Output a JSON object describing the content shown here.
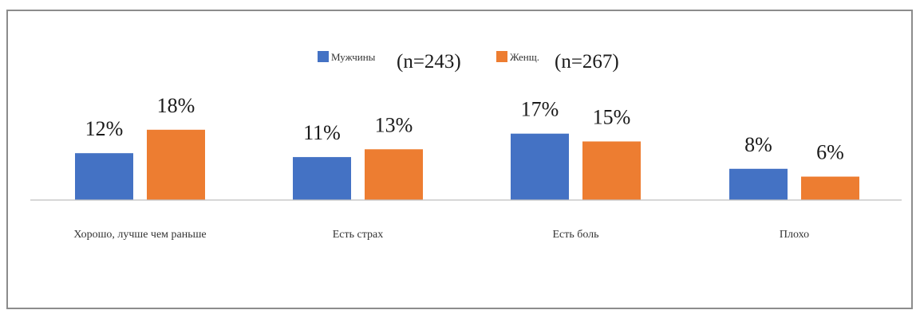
{
  "chart_data": {
    "type": "bar",
    "categories": [
      "Хорошо, лучше чем раньше",
      "Есть страх",
      "Есть боль",
      "Плохо"
    ],
    "series": [
      {
        "name": "Мужчины",
        "n_label": "(n=243)",
        "color": "#4472C4",
        "values": [
          12,
          11,
          17,
          8
        ],
        "labels": [
          "12%",
          "11%",
          "17%",
          "8%"
        ]
      },
      {
        "name": "Женщ.",
        "n_label": "(n=267)",
        "color": "#ED7D31",
        "values": [
          18,
          13,
          15,
          6
        ],
        "labels": [
          "18%",
          "13%",
          "15%",
          "6%"
        ]
      }
    ],
    "title": "",
    "xlabel": "",
    "ylabel": "",
    "ylim": [
      0,
      20
    ],
    "legend": "top-center",
    "grid": false,
    "axis_color": "#bfbfbf"
  }
}
